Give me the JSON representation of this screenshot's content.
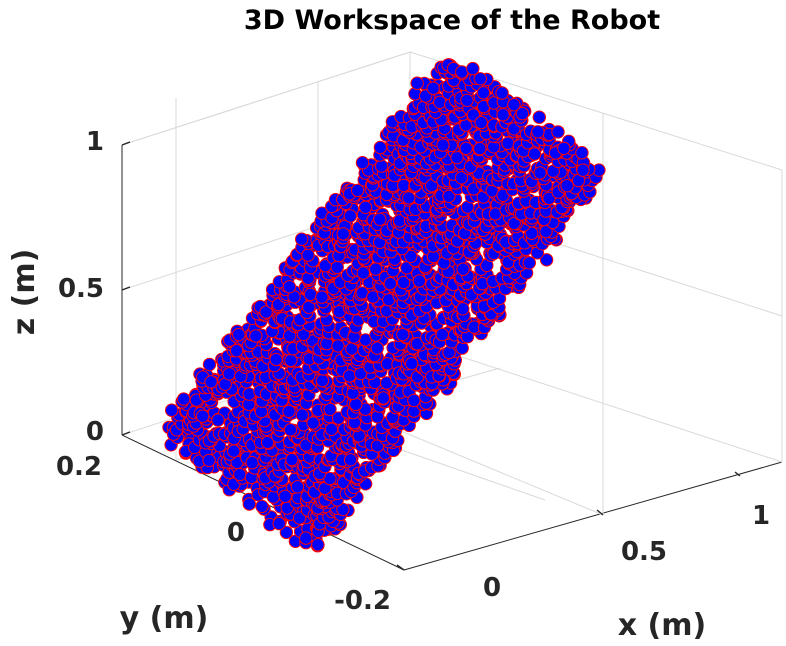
{
  "chart_data": {
    "type": "scatter",
    "title": "3D Workspace of the Robot",
    "xlabel": "x (m)",
    "ylabel": "y (m)",
    "zlabel": "z (m)",
    "xlim": [
      -0.1,
      1.2
    ],
    "ylim": [
      -0.25,
      0.25
    ],
    "zlim": [
      0,
      1.05
    ],
    "xticks": [
      "0",
      "0.5",
      "1"
    ],
    "yticks": [
      "0.2",
      "0",
      "-0.2"
    ],
    "zticks": [
      "1",
      "0.5",
      "0"
    ],
    "grid": true,
    "marker_face_color": "#0000ff",
    "marker_edge_color": "#ff0000",
    "region": {
      "x_range": [
        0,
        1.0
      ],
      "y_range": [
        -0.2,
        0.2
      ],
      "z_range": [
        0,
        1.0
      ],
      "description_points": "dense point cloud of reachable end-effector positions"
    }
  }
}
